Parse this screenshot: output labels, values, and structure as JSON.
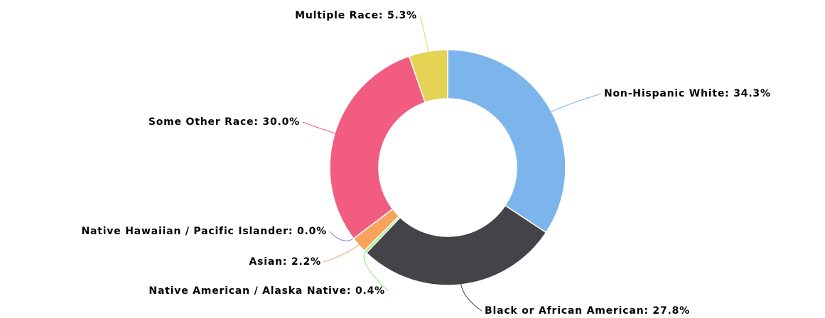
{
  "chart_data": {
    "type": "donut",
    "value_labels": [
      "Non-Hispanic White: 34.3%",
      "Black or African American: 27.8%",
      "Native American / Alaska Native: 0.4%",
      "Asian: 2.2%",
      "Native Hawaiian / Pacific Islander: 0.0%",
      "Some Other Race: 30.0%",
      "Multiple Race: 5.3%"
    ],
    "values": [
      34.3,
      27.8,
      0.4,
      2.2,
      0.0,
      30.0,
      5.3
    ],
    "colors": [
      "#7cb5ec",
      "#434348",
      "#90ed7d",
      "#f7a35c",
      "#8085e9",
      "#f15c80",
      "#e4d354"
    ]
  }
}
